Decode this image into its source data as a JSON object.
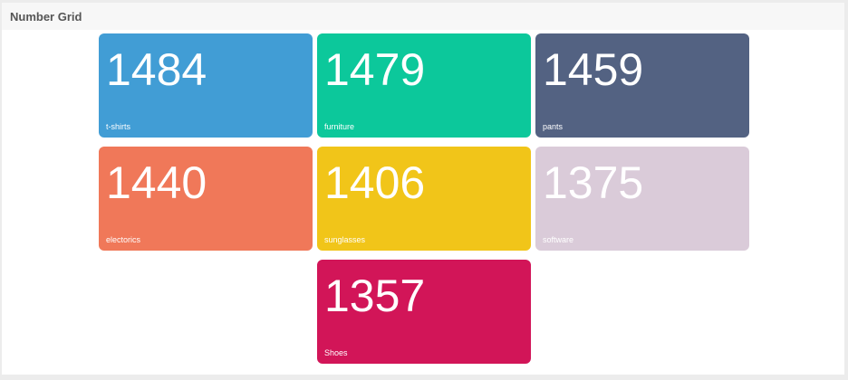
{
  "panel": {
    "title": "Number Grid"
  },
  "chart_data": {
    "type": "table",
    "title": "Number Grid",
    "items": [
      {
        "label": "t-shirts",
        "value": 1484,
        "color": "#419dd5"
      },
      {
        "label": "furniture",
        "value": 1479,
        "color": "#0cc89b"
      },
      {
        "label": "pants",
        "value": 1459,
        "color": "#536282"
      },
      {
        "label": "electorics",
        "value": 1440,
        "color": "#f07859"
      },
      {
        "label": "sunglasses",
        "value": 1406,
        "color": "#f1c519"
      },
      {
        "label": "software",
        "value": 1375,
        "color": "#dacbd9"
      },
      {
        "label": "Shoes",
        "value": 1357,
        "color": "#d21558"
      }
    ]
  }
}
